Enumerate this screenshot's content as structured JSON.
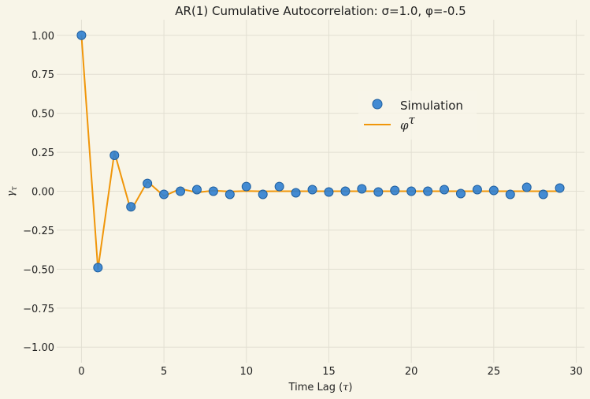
{
  "chart_data": {
    "type": "scatter+line",
    "title": "AR(1) Cumulative Autocorrelation: σ=1.0, φ=-0.5",
    "xlabel_text": "Time Lag (",
    "xlabel_symbol": "τ",
    "xlabel_close": ")",
    "ylabel_symbol": "γ",
    "ylabel_sub": "τ",
    "xlim": [
      -1.5,
      30.5
    ],
    "ylim": [
      -1.1,
      1.1
    ],
    "xticks": [
      0,
      5,
      10,
      15,
      20,
      25,
      30
    ],
    "yticks": [
      -1.0,
      -0.75,
      -0.5,
      -0.25,
      0.0,
      0.25,
      0.5,
      0.75,
      1.0
    ],
    "ytick_labels": [
      "−1.00",
      "−0.75",
      "−0.50",
      "−0.25",
      "0.00",
      "0.25",
      "0.50",
      "0.75",
      "1.00"
    ],
    "grid": true,
    "legend_placement": "upper-right-inner",
    "series": [
      {
        "name": "Simulation",
        "kind": "scatter",
        "color": "#2f80d0",
        "x": [
          0,
          1,
          2,
          3,
          4,
          5,
          6,
          7,
          8,
          9,
          10,
          11,
          12,
          13,
          14,
          15,
          16,
          17,
          18,
          19,
          20,
          21,
          22,
          23,
          24,
          25,
          26,
          27,
          28,
          29
        ],
        "y": [
          1.0,
          -0.49,
          0.23,
          -0.1,
          0.05,
          -0.02,
          0.0,
          0.01,
          0.0,
          -0.02,
          0.03,
          -0.02,
          0.03,
          -0.01,
          0.01,
          -0.005,
          0.0,
          0.015,
          -0.005,
          0.005,
          0.0,
          0.0,
          0.01,
          -0.015,
          0.01,
          0.005,
          -0.02,
          0.025,
          -0.02,
          0.02
        ]
      },
      {
        "name_base": "φ",
        "name_sup": "τ",
        "kind": "line",
        "color": "#f0960a",
        "x": [
          0,
          1,
          2,
          3,
          4,
          5,
          6,
          7,
          8,
          9,
          10,
          11,
          12,
          13,
          14,
          15,
          16,
          17,
          18,
          19,
          20,
          21,
          22,
          23,
          24,
          25,
          26,
          27,
          28,
          29
        ],
        "y": [
          1.0,
          -0.5,
          0.25,
          -0.125,
          0.0625,
          -0.03125,
          0.015625,
          -0.0078125,
          0.0039063,
          -0.0019531,
          0.0009766,
          -0.0004883,
          0.0002441,
          -0.0001221,
          6.1e-05,
          -3.05e-05,
          1.53e-05,
          -7.6e-06,
          3.8e-06,
          -1.9e-06,
          9.5e-07,
          -4.8e-07,
          2.4e-07,
          -1.2e-07,
          6e-08,
          -3e-08,
          1.5e-08,
          -7.5e-09,
          3.7e-09,
          -1.9e-09
        ]
      }
    ]
  }
}
